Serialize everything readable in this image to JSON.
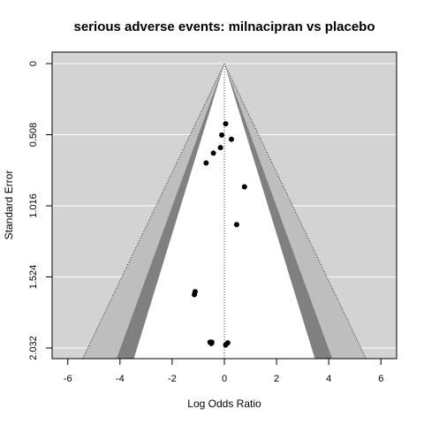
{
  "chart_data": {
    "type": "scatter",
    "title": "serious adverse events: milnacipran vs placebo",
    "xlabel": "Log Odds Ratio",
    "ylabel": "Standard Error",
    "xlim": [
      -6.6,
      6.6
    ],
    "ylim": [
      0,
      2.032
    ],
    "y_reversed": true,
    "xticks": [
      -6,
      -4,
      -2,
      0,
      2,
      4,
      6
    ],
    "yticks": [
      0,
      0.508,
      1.016,
      1.524,
      2.032
    ],
    "ytick_labels": [
      "0",
      "0.508",
      "1.016",
      "1.524",
      "2.032"
    ],
    "contour_z": [
      1.645,
      1.96,
      2.576
    ],
    "contour_colors": [
      "#ffffff",
      "#808080",
      "#bebebe"
    ],
    "background_color": "#d3d3d3",
    "grid": true,
    "reference_x": 0,
    "points": [
      {
        "x": 0.05,
        "y": 0.43
      },
      {
        "x": -0.1,
        "y": 0.51
      },
      {
        "x": 0.27,
        "y": 0.54
      },
      {
        "x": -0.15,
        "y": 0.6
      },
      {
        "x": -0.42,
        "y": 0.64
      },
      {
        "x": -0.7,
        "y": 0.71
      },
      {
        "x": 0.77,
        "y": 0.88
      },
      {
        "x": 0.47,
        "y": 1.15
      },
      {
        "x": -1.12,
        "y": 1.63
      },
      {
        "x": -1.15,
        "y": 1.65
      },
      {
        "x": -0.55,
        "y": 1.99
      },
      {
        "x": -0.48,
        "y": 1.99
      },
      {
        "x": -0.5,
        "y": 2.0
      },
      {
        "x": 0.13,
        "y": 1.995
      },
      {
        "x": 0.05,
        "y": 2.01
      }
    ]
  }
}
